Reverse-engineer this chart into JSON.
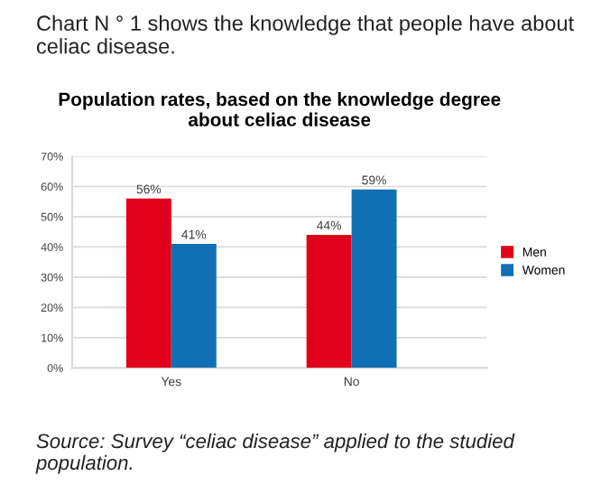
{
  "chart_data": {
    "type": "bar",
    "title": "Population rates, based on the knowledge degree\nabout celiac disease",
    "categories": [
      "Yes",
      "No"
    ],
    "series": [
      {
        "name": "Men",
        "color": "#e0001b",
        "values": [
          56,
          44
        ],
        "value_labels": [
          "56%",
          "44%"
        ]
      },
      {
        "name": "Women",
        "color": "#1170b5",
        "values": [
          41,
          59
        ],
        "value_labels": [
          "41%",
          "59%"
        ]
      }
    ],
    "ylim": [
      0,
      70
    ],
    "yticks": [
      {
        "value": 0,
        "label": "0%"
      },
      {
        "value": 10,
        "label": "10%"
      },
      {
        "value": 20,
        "label": "20%"
      },
      {
        "value": 30,
        "label": "30%"
      },
      {
        "value": 40,
        "label": "40%"
      },
      {
        "value": 50,
        "label": "50%"
      },
      {
        "value": 60,
        "label": "60%"
      },
      {
        "value": 70,
        "label": "70%"
      }
    ],
    "grid": "y",
    "legend": "right",
    "annotations": [
      "Chart N ° 1 shows the knowledge that people have about celiac disease.",
      "Source: Survey “celiac disease” applied to the studied population."
    ]
  }
}
